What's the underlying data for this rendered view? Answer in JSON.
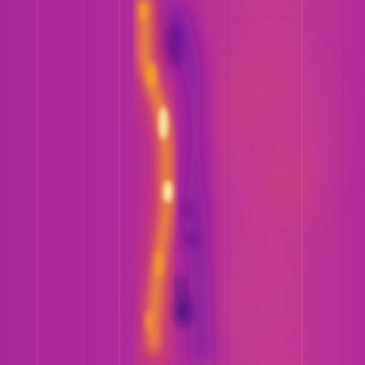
{
  "image": {
    "subject": "thermal-heatmap",
    "colormap": "magma-like",
    "colors": {
      "base": "#b12a9a",
      "right_field": "#c33c8f",
      "left_field": "#a8289c",
      "cool_shadow": "#6f16a8",
      "deep_cool": "#3d0a80",
      "warm": "#e8533f",
      "hot": "#f6a32a",
      "hottest": "#fff2a8"
    }
  }
}
